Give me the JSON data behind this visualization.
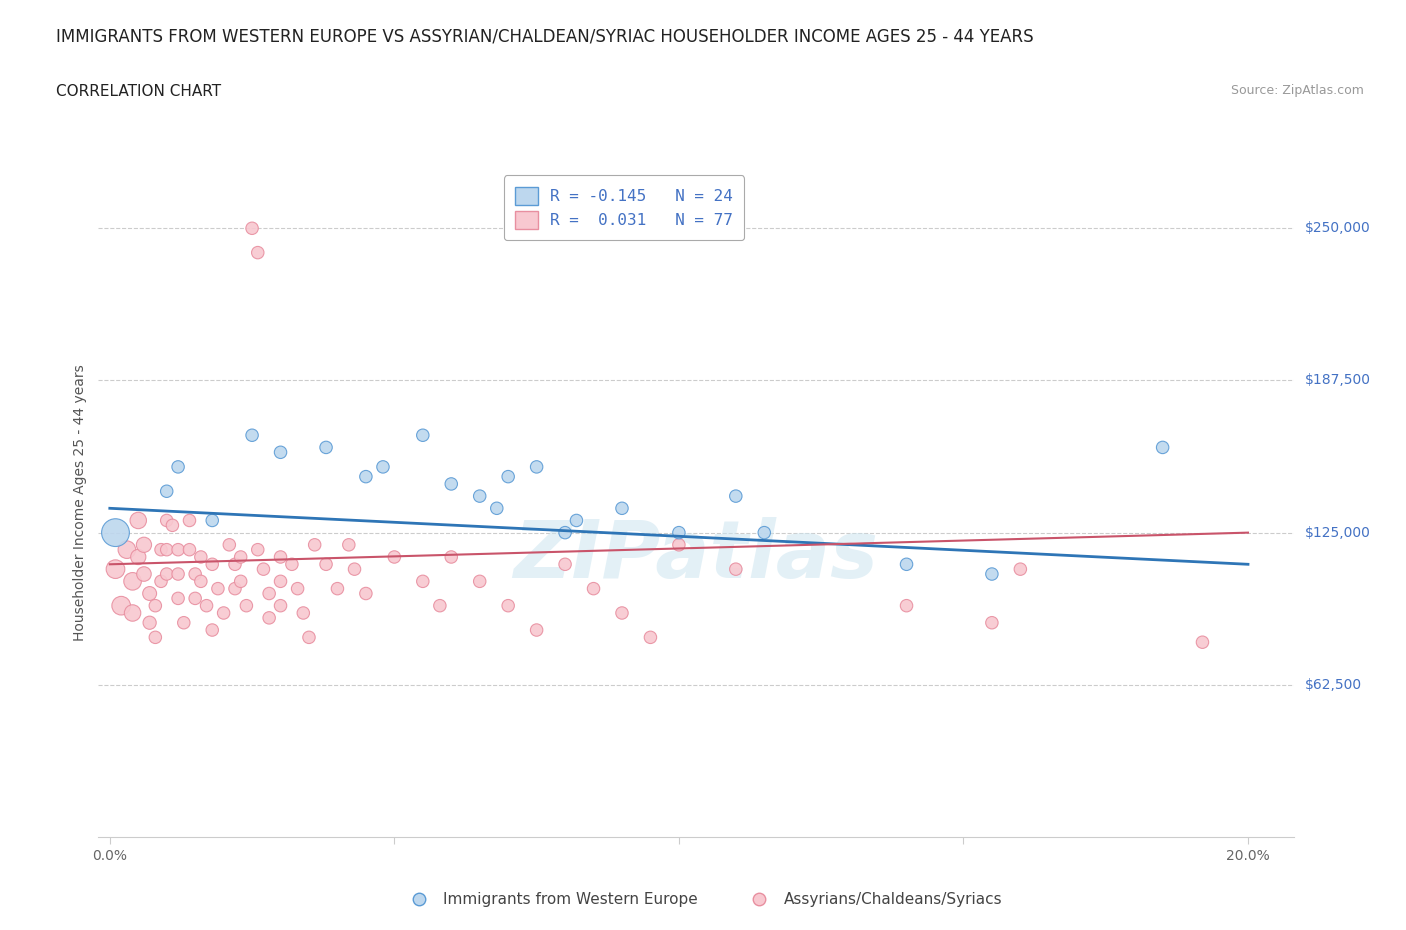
{
  "title": "IMMIGRANTS FROM WESTERN EUROPE VS ASSYRIAN/CHALDEAN/SYRIAC HOUSEHOLDER INCOME AGES 25 - 44 YEARS",
  "subtitle": "CORRELATION CHART",
  "source": "Source: ZipAtlas.com",
  "ylabel": "Householder Income Ages 25 - 44 years",
  "xlim": [
    -0.002,
    0.208
  ],
  "ylim": [
    0,
    275000
  ],
  "xticks": [
    0.0,
    0.05,
    0.1,
    0.15,
    0.2
  ],
  "xticklabels": [
    "0.0%",
    "",
    "",
    "",
    "20.0%"
  ],
  "ytick_positions": [
    62500,
    125000,
    187500,
    250000
  ],
  "ytick_labels": [
    "$62,500",
    "$125,000",
    "$187,500",
    "$250,000"
  ],
  "hlines": [
    62500,
    125000,
    187500,
    250000
  ],
  "blue_edge_color": "#5b9bd5",
  "pink_edge_color": "#e88fa0",
  "blue_fill_color": "#bdd7ee",
  "pink_fill_color": "#f8c8d0",
  "blue_trend_color": "#2e75b6",
  "pink_trend_color": "#c9546a",
  "legend_label1": "Immigrants from Western Europe",
  "legend_label2": "Assyrians/Chaldeans/Syriacs",
  "watermark": "ZIPatlas",
  "title_fontsize": 12,
  "subtitle_fontsize": 11,
  "axis_label_fontsize": 10,
  "tick_fontsize": 10,
  "blue_points": [
    [
      0.001,
      125000
    ],
    [
      0.01,
      142000
    ],
    [
      0.012,
      152000
    ],
    [
      0.018,
      130000
    ],
    [
      0.025,
      165000
    ],
    [
      0.03,
      158000
    ],
    [
      0.038,
      160000
    ],
    [
      0.045,
      148000
    ],
    [
      0.048,
      152000
    ],
    [
      0.055,
      165000
    ],
    [
      0.06,
      145000
    ],
    [
      0.065,
      140000
    ],
    [
      0.068,
      135000
    ],
    [
      0.07,
      148000
    ],
    [
      0.075,
      152000
    ],
    [
      0.08,
      125000
    ],
    [
      0.082,
      130000
    ],
    [
      0.09,
      135000
    ],
    [
      0.1,
      125000
    ],
    [
      0.11,
      140000
    ],
    [
      0.115,
      125000
    ],
    [
      0.14,
      112000
    ],
    [
      0.155,
      108000
    ],
    [
      0.185,
      160000
    ]
  ],
  "blue_point_sizes": [
    400,
    80,
    80,
    80,
    80,
    80,
    80,
    80,
    80,
    80,
    80,
    80,
    80,
    80,
    80,
    80,
    80,
    80,
    80,
    80,
    80,
    80,
    80,
    80
  ],
  "pink_points": [
    [
      0.001,
      110000
    ],
    [
      0.002,
      95000
    ],
    [
      0.003,
      118000
    ],
    [
      0.004,
      105000
    ],
    [
      0.004,
      92000
    ],
    [
      0.005,
      130000
    ],
    [
      0.005,
      115000
    ],
    [
      0.006,
      120000
    ],
    [
      0.006,
      108000
    ],
    [
      0.007,
      100000
    ],
    [
      0.007,
      88000
    ],
    [
      0.008,
      95000
    ],
    [
      0.008,
      82000
    ],
    [
      0.009,
      118000
    ],
    [
      0.009,
      105000
    ],
    [
      0.01,
      130000
    ],
    [
      0.01,
      118000
    ],
    [
      0.01,
      108000
    ],
    [
      0.011,
      128000
    ],
    [
      0.012,
      118000
    ],
    [
      0.012,
      108000
    ],
    [
      0.012,
      98000
    ],
    [
      0.013,
      88000
    ],
    [
      0.014,
      130000
    ],
    [
      0.014,
      118000
    ],
    [
      0.015,
      108000
    ],
    [
      0.015,
      98000
    ],
    [
      0.016,
      115000
    ],
    [
      0.016,
      105000
    ],
    [
      0.017,
      95000
    ],
    [
      0.018,
      85000
    ],
    [
      0.018,
      112000
    ],
    [
      0.019,
      102000
    ],
    [
      0.02,
      92000
    ],
    [
      0.021,
      120000
    ],
    [
      0.022,
      112000
    ],
    [
      0.022,
      102000
    ],
    [
      0.023,
      115000
    ],
    [
      0.023,
      105000
    ],
    [
      0.024,
      95000
    ],
    [
      0.025,
      250000
    ],
    [
      0.026,
      240000
    ],
    [
      0.026,
      118000
    ],
    [
      0.027,
      110000
    ],
    [
      0.028,
      100000
    ],
    [
      0.028,
      90000
    ],
    [
      0.03,
      115000
    ],
    [
      0.03,
      105000
    ],
    [
      0.03,
      95000
    ],
    [
      0.032,
      112000
    ],
    [
      0.033,
      102000
    ],
    [
      0.034,
      92000
    ],
    [
      0.035,
      82000
    ],
    [
      0.036,
      120000
    ],
    [
      0.038,
      112000
    ],
    [
      0.04,
      102000
    ],
    [
      0.042,
      120000
    ],
    [
      0.043,
      110000
    ],
    [
      0.045,
      100000
    ],
    [
      0.05,
      115000
    ],
    [
      0.055,
      105000
    ],
    [
      0.058,
      95000
    ],
    [
      0.06,
      115000
    ],
    [
      0.065,
      105000
    ],
    [
      0.07,
      95000
    ],
    [
      0.075,
      85000
    ],
    [
      0.08,
      112000
    ],
    [
      0.085,
      102000
    ],
    [
      0.09,
      92000
    ],
    [
      0.095,
      82000
    ],
    [
      0.1,
      120000
    ],
    [
      0.11,
      110000
    ],
    [
      0.14,
      95000
    ],
    [
      0.155,
      88000
    ],
    [
      0.16,
      110000
    ],
    [
      0.192,
      80000
    ]
  ],
  "pink_point_sizes": [
    180,
    180,
    160,
    160,
    140,
    140,
    120,
    120,
    110,
    100,
    90,
    80,
    80,
    80,
    80,
    80,
    80,
    80,
    80,
    80,
    80,
    80,
    80,
    80,
    80,
    80,
    80,
    80,
    80,
    80,
    80,
    80,
    80,
    80,
    80,
    80,
    80,
    80,
    80,
    80,
    80,
    80,
    80,
    80,
    80,
    80,
    80,
    80,
    80,
    80,
    80,
    80,
    80,
    80,
    80,
    80,
    80,
    80,
    80,
    80,
    80,
    80,
    80,
    80,
    80,
    80,
    80,
    80,
    80,
    80,
    80,
    80,
    80,
    80,
    80,
    80
  ]
}
